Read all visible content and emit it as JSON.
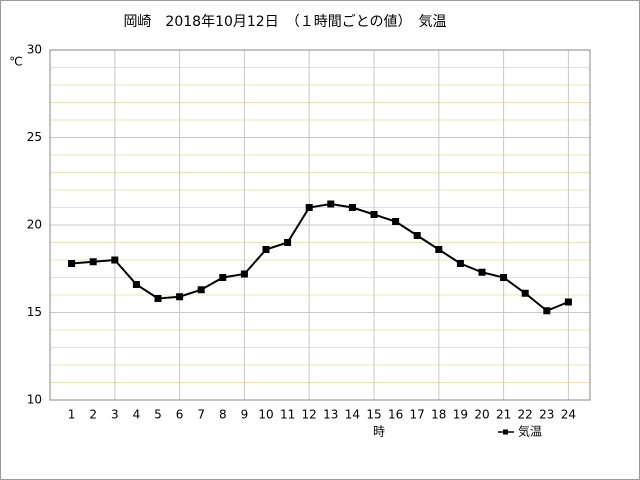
{
  "chart_data": {
    "type": "line",
    "title": "岡崎　2018年10月12日　（１時間ごとの値）　気温",
    "ylabel": "℃",
    "xlabel": "時",
    "x": [
      1,
      2,
      3,
      4,
      5,
      6,
      7,
      8,
      9,
      10,
      11,
      12,
      13,
      14,
      15,
      16,
      17,
      18,
      19,
      20,
      21,
      22,
      23,
      24
    ],
    "series": [
      {
        "name": "気温",
        "color": "#000000",
        "values": [
          17.8,
          17.9,
          18.0,
          16.6,
          15.8,
          15.9,
          16.3,
          17.0,
          17.2,
          18.6,
          19.0,
          21.0,
          21.2,
          21.0,
          20.6,
          20.2,
          19.4,
          18.6,
          17.8,
          17.3,
          17.0,
          16.1,
          15.1,
          15.6
        ]
      }
    ],
    "xlim": [
      0,
      25
    ],
    "xticks": [
      1,
      2,
      3,
      4,
      5,
      6,
      7,
      8,
      9,
      10,
      11,
      12,
      13,
      14,
      15,
      16,
      17,
      18,
      19,
      20,
      21,
      22,
      23,
      24
    ],
    "xgrid_lines": [
      3,
      6,
      9,
      12,
      15,
      18,
      21,
      24
    ],
    "ylim": [
      10,
      30
    ],
    "yticks": [
      10,
      15,
      20,
      25,
      30
    ],
    "yminor_grid_lines": [
      11,
      12,
      13,
      14,
      16,
      17,
      18,
      19,
      21,
      22,
      23,
      24,
      26,
      27,
      28,
      29
    ],
    "grid": true,
    "legend": "bottom-right"
  }
}
